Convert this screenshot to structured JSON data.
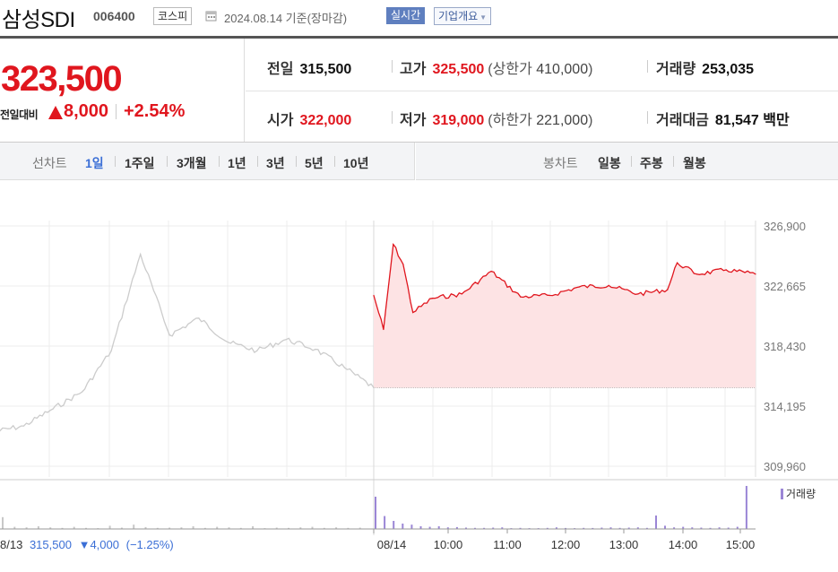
{
  "header": {
    "stock_name": "삼성SDI",
    "stock_code": "006400",
    "market": "코스피",
    "date_text": "2024.08.14 기준(장마감)",
    "realtime_button": "실시간",
    "company_button": "기업개요",
    "calendar_icon": "calendar-icon",
    "dropdown_icon": "caret-down-icon"
  },
  "price": {
    "current": "323,500",
    "change_label": "전일대비",
    "change_amount": "8,000",
    "change_percent": "+2.54%",
    "direction_icon": "up-triangle-icon",
    "up_color": "#e0161e",
    "down_color": "#3b6fd6"
  },
  "stats": {
    "prev_close": {
      "label": "전일",
      "value": "315,500"
    },
    "high": {
      "label": "고가",
      "value": "325,500",
      "sub_label": "(상한가",
      "sub_value": "410,000",
      "sub_close": ")"
    },
    "volume": {
      "label": "거래량",
      "value": "253,035"
    },
    "open": {
      "label": "시가",
      "value": "322,000"
    },
    "low": {
      "label": "저가",
      "value": "319,000",
      "sub_label": "(하한가",
      "sub_value": "221,000",
      "sub_close": ")"
    },
    "trade_value": {
      "label": "거래대금",
      "value": "81,547",
      "unit": "백만"
    }
  },
  "line_tabs": {
    "label": "선차트",
    "items": [
      "1일",
      "1주일",
      "3개월",
      "1년",
      "3년",
      "5년",
      "10년"
    ],
    "active": "1일"
  },
  "candle_tabs": {
    "label": "봉차트",
    "items": [
      "일봉",
      "주봉",
      "월봉"
    ]
  },
  "chart_data": {
    "type": "line",
    "title": "",
    "ylim": [
      309960,
      326900
    ],
    "y_ticks": [
      "326,900",
      "322,665",
      "318,430",
      "314,195",
      "309,960"
    ],
    "x_ticks": [
      "08/14",
      "10:00",
      "11:00",
      "12:00",
      "13:00",
      "14:00",
      "15:00"
    ],
    "reference_price": 315500,
    "grid": true,
    "series": [
      {
        "name": "",
        "color": "#999999",
        "x": [
          "08/13 09:00",
          "08/13 09:30",
          "08/13 10:00",
          "08/13 10:30",
          "08/13 11:00",
          "08/13 11:30",
          "08/13 12:00",
          "08/13 12:30",
          "08/13 13:00",
          "08/13 13:30",
          "08/13 14:00",
          "08/13 14:30",
          "08/13 15:00",
          "08/13 15:30"
        ],
        "values": [
          312400,
          312800,
          314000,
          315200,
          318100,
          324900,
          319200,
          320400,
          318700,
          318100,
          318900,
          318200,
          316900,
          315500
        ]
      },
      {
        "name": "",
        "color": "#e0161e",
        "x": [
          "08/14 09:00",
          "08/14 09:10",
          "08/14 09:20",
          "08/14 09:30",
          "08/14 09:40",
          "08/14 10:00",
          "08/14 10:30",
          "08/14 11:00",
          "08/14 11:30",
          "08/14 12:00",
          "08/14 12:30",
          "08/14 13:00",
          "08/14 13:30",
          "08/14 14:00",
          "08/14 14:10",
          "08/14 14:30",
          "08/14 15:00",
          "08/14 15:30"
        ],
        "values": [
          322000,
          319600,
          325600,
          324200,
          320800,
          321800,
          322100,
          323700,
          321900,
          322000,
          322600,
          322700,
          322100,
          322400,
          324300,
          323500,
          323800,
          323500
        ]
      }
    ],
    "prev_day": {
      "date": "8/13",
      "close": "315,500",
      "arrow_icon": "down-triangle-icon",
      "change": "4,000",
      "change_pct": "(−1.25%)"
    },
    "volume": {
      "legend": "거래량",
      "color": "#9b86d6",
      "prev_color": "#c8c8c8",
      "prev_values": [
        22000,
        4000,
        3000,
        5000,
        3000,
        2000,
        4000,
        2000,
        1500,
        6000,
        2500,
        8000,
        3500,
        2000,
        2500,
        3000,
        5000,
        2000,
        4000,
        3000,
        2000,
        5000,
        1500,
        2500,
        2000,
        3000,
        4000,
        2000,
        3000,
        2000,
        2500
      ],
      "values": [
        60000,
        24000,
        15000,
        10000,
        8000,
        5000,
        4000,
        5000,
        3000,
        3500,
        2500,
        2000,
        2000,
        2500,
        3000,
        1500,
        2000,
        1500,
        1500,
        2000,
        3000,
        1800,
        1500,
        2000,
        1800,
        2500,
        3000,
        2000,
        2500,
        3000,
        2000,
        25000,
        6000,
        3000,
        4000,
        3000,
        2500,
        2000,
        3000,
        2500,
        4000,
        80000
      ]
    }
  }
}
